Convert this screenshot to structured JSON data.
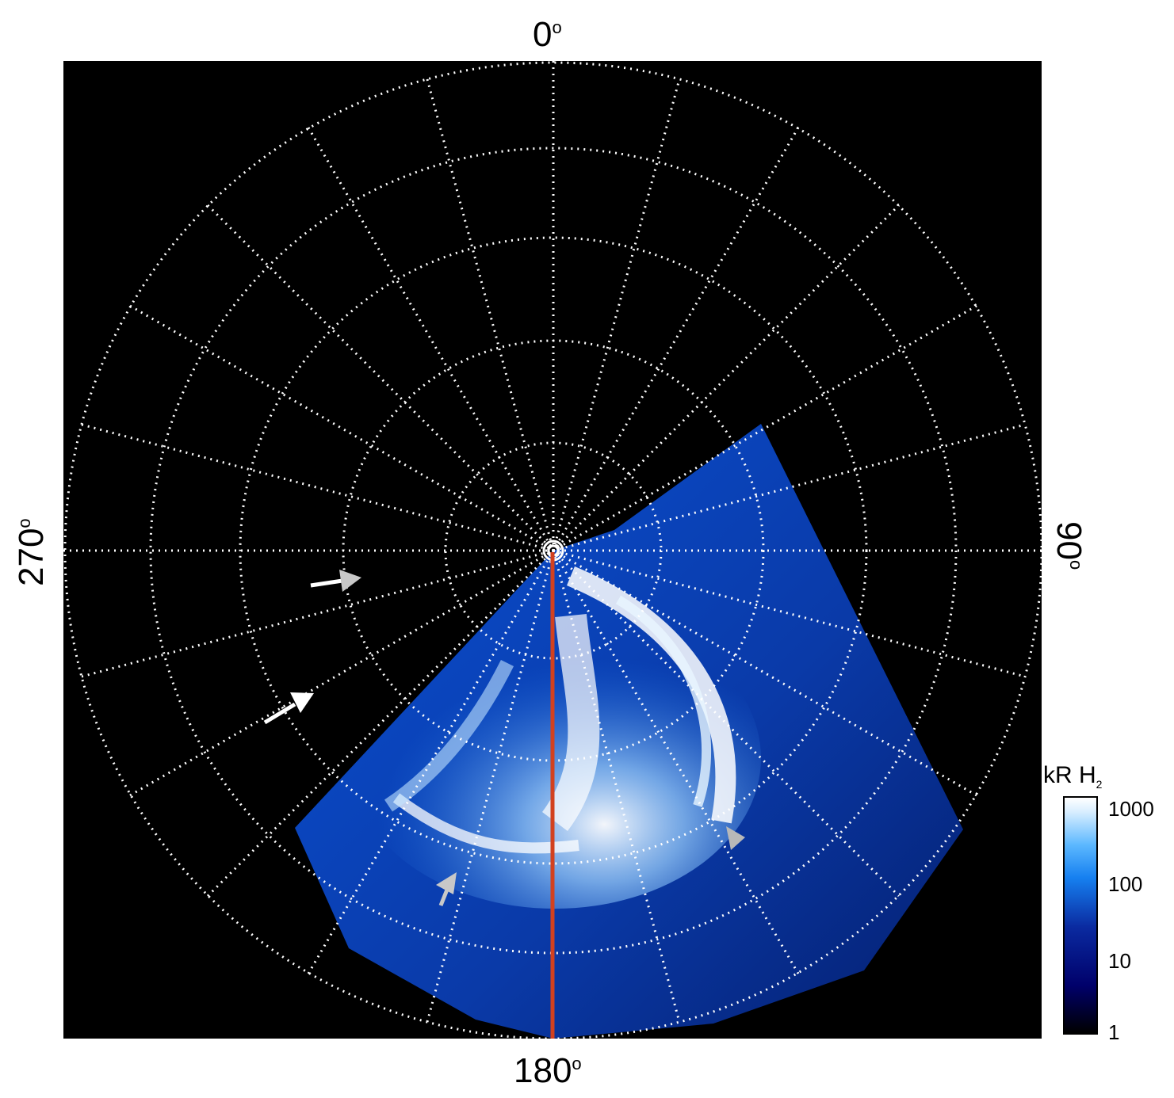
{
  "axis_labels": {
    "top": "0",
    "right": "90",
    "bottom": "180",
    "left": "270",
    "degree_symbol": "o"
  },
  "colorbar": {
    "title_main": "kR H",
    "title_sub": "2",
    "ticks": [
      "1000",
      "100",
      "10",
      "1"
    ],
    "scale": "log",
    "range": [
      1,
      1000
    ],
    "colors": [
      "#000000",
      "#00006a",
      "#0a2aa0",
      "#1680f0",
      "#5cb8ff",
      "#ffffff"
    ]
  },
  "image": {
    "description_color_background": "#000000",
    "grid_color": "#ffffff",
    "meridian_line_color": "#d2411f",
    "arrow_colors": [
      "#ffffff",
      "#c8c8c8"
    ]
  }
}
